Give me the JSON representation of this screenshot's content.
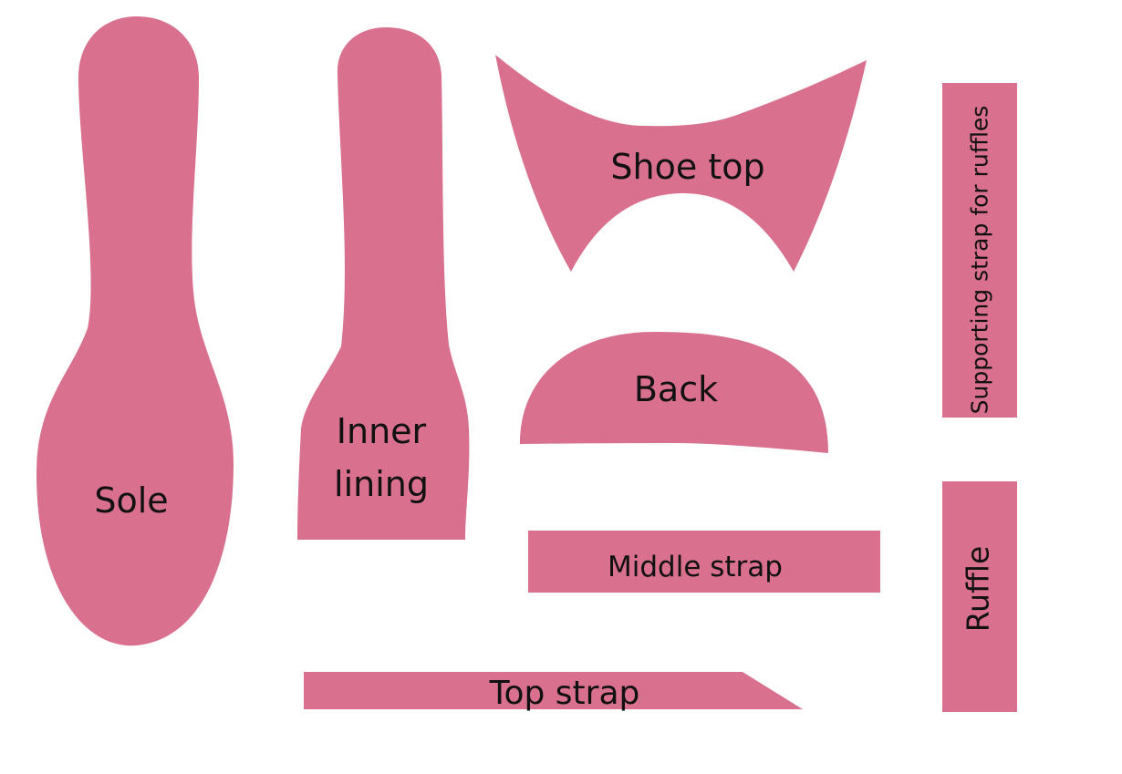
{
  "colors": {
    "piece_fill": "#D9708E",
    "label_color": "#111111",
    "background": "#FFFFFF"
  },
  "pieces": {
    "sole": {
      "label": "Sole"
    },
    "inner_lining": {
      "line1": "Inner",
      "line2": "lining"
    },
    "shoe_top": {
      "label": "Shoe top"
    },
    "back": {
      "label": "Back"
    },
    "middle_strap": {
      "label": "Middle strap"
    },
    "top_strap": {
      "label": "Top strap"
    },
    "supporting_strap": {
      "label": "Supporting strap for ruffles"
    },
    "ruffle": {
      "label": "Ruffle"
    }
  }
}
